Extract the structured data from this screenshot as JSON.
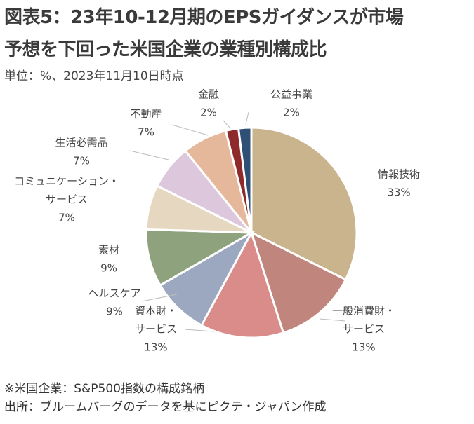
{
  "header": {
    "title_line1": "図表5：23年10-12月期のEPSガイダンスが市場",
    "title_line2": "予想を下回った米国企業の業種別構成比",
    "subtitle": "単位：%、2023年11月10日時点"
  },
  "footer": {
    "note1": "※米国企業：S&P500指数の構成銘柄",
    "note2": "出所：ブルームバーグのデータを基にピクテ・ジャパン作成"
  },
  "colors": {
    "情報技術": "#c9b48d",
    "一般消費財・サービス": "#c0857d",
    "資本財・サービス": "#d98c89",
    "ヘルスケア": "#9ba8bf",
    "素材": "#8fa27e",
    "コミュニケーション・サービス": "#e6d8c0",
    "生活必需品": "#ddc7dc",
    "不動産": "#e6b89b",
    "金融": "#8e2a2a",
    "公益事業": "#2f4f74"
  },
  "chart_data": {
    "type": "pie",
    "start": "12 o'clock",
    "direction": "clockwise",
    "categories": [
      "情報技術",
      "一般消費財・サービス",
      "資本財・サービス",
      "ヘルスケア",
      "素材",
      "コミュニケーション・サービス",
      "生活必需品",
      "不動産",
      "金融",
      "公益事業"
    ],
    "values": [
      33,
      13,
      13,
      9,
      9,
      7,
      7,
      7,
      2,
      2
    ],
    "labels": [
      {
        "lines": [
          "情報技術"
        ],
        "value": "33%"
      },
      {
        "lines": [
          "一般消費財・",
          "サービス"
        ],
        "value": "13%"
      },
      {
        "lines": [
          "資本財・",
          "サービス"
        ],
        "value": "13%"
      },
      {
        "lines": [
          "ヘルスケア"
        ],
        "value": "9%"
      },
      {
        "lines": [
          "素材"
        ],
        "value": "9%"
      },
      {
        "lines": [
          "コミュニケーション・",
          "サービス"
        ],
        "value": "7%"
      },
      {
        "lines": [
          "生活必需品"
        ],
        "value": "7%"
      },
      {
        "lines": [
          "不動産"
        ],
        "value": "7%"
      },
      {
        "lines": [
          "金融"
        ],
        "value": "2%"
      },
      {
        "lines": [
          "公益事業"
        ],
        "value": "2%"
      }
    ]
  }
}
